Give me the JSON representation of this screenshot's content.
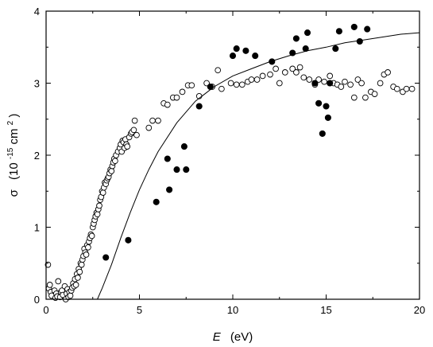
{
  "chart_data": {
    "type": "scatter",
    "title": "",
    "xlabel": {
      "var": "E",
      "unit": "(eV)"
    },
    "ylabel": {
      "var": "σ",
      "unit_open": "(10",
      "unit_exp": "-15",
      "unit_close": " cm",
      "unit_sq": "2",
      "unit_end": ")"
    },
    "xlim": [
      0,
      20
    ],
    "ylim": [
      0,
      4
    ],
    "x_ticks": [
      0,
      5,
      10,
      15,
      20
    ],
    "y_ticks": [
      0,
      1,
      2,
      3,
      4
    ],
    "x_tick_labels": [
      "0",
      "5",
      "10",
      "15",
      "20"
    ],
    "y_tick_labels": [
      "0",
      "1",
      "2",
      "3",
      "4"
    ],
    "grid": false,
    "legend": "none",
    "colors": {
      "axis": "#000000",
      "marker": "#000000",
      "curve": "#000000"
    },
    "series": [
      {
        "style": "open-circle",
        "points": [
          [
            0.1,
            0.48
          ],
          [
            0.15,
            0.15
          ],
          [
            0.2,
            0.2
          ],
          [
            0.25,
            0.1
          ],
          [
            0.3,
            0.05
          ],
          [
            0.45,
            0.12
          ],
          [
            0.5,
            0.02
          ],
          [
            0.55,
            0.08
          ],
          [
            0.6,
            0.04
          ],
          [
            0.65,
            0.25
          ],
          [
            0.75,
            0.03
          ],
          [
            0.8,
            0.1
          ],
          [
            0.85,
            0.12
          ],
          [
            0.9,
            0.06
          ],
          [
            1.0,
            0.18
          ],
          [
            1.05,
            0.0
          ],
          [
            1.1,
            0.08
          ],
          [
            1.15,
            0.14
          ],
          [
            1.2,
            0.03
          ],
          [
            1.25,
            0.1
          ],
          [
            1.3,
            0.05
          ],
          [
            1.35,
            0.12
          ],
          [
            1.4,
            0.16
          ],
          [
            1.45,
            0.22
          ],
          [
            1.5,
            0.18
          ],
          [
            1.55,
            0.28
          ],
          [
            1.6,
            0.2
          ],
          [
            1.65,
            0.35
          ],
          [
            1.7,
            0.3
          ],
          [
            1.75,
            0.42
          ],
          [
            1.8,
            0.38
          ],
          [
            1.85,
            0.5
          ],
          [
            1.9,
            0.48
          ],
          [
            1.95,
            0.55
          ],
          [
            2.0,
            0.6
          ],
          [
            2.05,
            0.7
          ],
          [
            2.1,
            0.65
          ],
          [
            2.15,
            0.62
          ],
          [
            2.2,
            0.75
          ],
          [
            2.25,
            0.72
          ],
          [
            2.3,
            0.8
          ],
          [
            2.35,
            0.85
          ],
          [
            2.4,
            0.9
          ],
          [
            2.45,
            0.88
          ],
          [
            2.5,
            1.0
          ],
          [
            2.55,
            1.05
          ],
          [
            2.6,
            1.1
          ],
          [
            2.65,
            1.15
          ],
          [
            2.7,
            1.2
          ],
          [
            2.75,
            1.18
          ],
          [
            2.8,
            1.25
          ],
          [
            2.85,
            1.3
          ],
          [
            2.9,
            1.38
          ],
          [
            2.95,
            1.42
          ],
          [
            3.0,
            1.5
          ],
          [
            3.05,
            1.48
          ],
          [
            3.1,
            1.55
          ],
          [
            3.15,
            1.62
          ],
          [
            3.2,
            1.6
          ],
          [
            3.25,
            1.65
          ],
          [
            3.3,
            1.68
          ],
          [
            3.35,
            1.7
          ],
          [
            3.4,
            1.75
          ],
          [
            3.45,
            1.8
          ],
          [
            3.5,
            1.78
          ],
          [
            3.55,
            1.85
          ],
          [
            3.6,
            1.9
          ],
          [
            3.65,
            1.95
          ],
          [
            3.7,
            1.92
          ],
          [
            3.75,
            2.0
          ],
          [
            3.85,
            2.05
          ],
          [
            3.95,
            2.1
          ],
          [
            4.0,
            2.15
          ],
          [
            4.05,
            2.05
          ],
          [
            4.1,
            2.2
          ],
          [
            4.15,
            2.18
          ],
          [
            4.2,
            2.1
          ],
          [
            4.25,
            2.22
          ],
          [
            4.3,
            2.15
          ],
          [
            4.35,
            2.12
          ],
          [
            4.45,
            2.25
          ],
          [
            4.55,
            2.3
          ],
          [
            4.6,
            2.32
          ],
          [
            4.7,
            2.35
          ],
          [
            4.75,
            2.48
          ],
          [
            4.85,
            2.28
          ],
          [
            5.5,
            2.38
          ],
          [
            5.7,
            2.48
          ],
          [
            6.0,
            2.48
          ],
          [
            6.3,
            2.72
          ],
          [
            6.5,
            2.7
          ],
          [
            6.8,
            2.8
          ],
          [
            7.0,
            2.8
          ],
          [
            7.3,
            2.88
          ],
          [
            7.6,
            2.97
          ],
          [
            7.8,
            2.97
          ],
          [
            8.2,
            2.82
          ],
          [
            8.6,
            3.0
          ],
          [
            8.9,
            2.95
          ],
          [
            9.2,
            3.18
          ],
          [
            9.4,
            2.92
          ],
          [
            9.9,
            3.0
          ],
          [
            10.2,
            2.98
          ],
          [
            10.5,
            2.98
          ],
          [
            10.8,
            3.02
          ],
          [
            11.0,
            3.05
          ],
          [
            11.3,
            3.05
          ],
          [
            11.6,
            3.1
          ],
          [
            12.0,
            3.12
          ],
          [
            12.3,
            3.2
          ],
          [
            12.5,
            3.0
          ],
          [
            12.8,
            3.15
          ],
          [
            13.2,
            3.2
          ],
          [
            13.4,
            3.15
          ],
          [
            13.6,
            3.22
          ],
          [
            13.8,
            3.08
          ],
          [
            14.1,
            3.05
          ],
          [
            14.4,
            2.98
          ],
          [
            14.6,
            3.05
          ],
          [
            14.9,
            3.02
          ],
          [
            15.2,
            3.1
          ],
          [
            15.4,
            3.0
          ],
          [
            15.6,
            2.98
          ],
          [
            15.8,
            2.95
          ],
          [
            16.0,
            3.02
          ],
          [
            16.3,
            2.98
          ],
          [
            16.5,
            2.8
          ],
          [
            16.7,
            3.05
          ],
          [
            16.9,
            3.0
          ],
          [
            17.1,
            2.8
          ],
          [
            17.4,
            2.88
          ],
          [
            17.6,
            2.85
          ],
          [
            17.9,
            3.0
          ],
          [
            18.1,
            3.12
          ],
          [
            18.3,
            3.15
          ],
          [
            18.6,
            2.95
          ],
          [
            18.8,
            2.92
          ],
          [
            19.1,
            2.88
          ],
          [
            19.3,
            2.92
          ],
          [
            19.6,
            2.92
          ]
        ]
      },
      {
        "style": "filled-circle",
        "points": [
          [
            3.2,
            0.58
          ],
          [
            4.4,
            0.82
          ],
          [
            5.9,
            1.35
          ],
          [
            6.5,
            1.95
          ],
          [
            6.6,
            1.52
          ],
          [
            7.0,
            1.8
          ],
          [
            7.4,
            2.12
          ],
          [
            7.5,
            1.8
          ],
          [
            8.2,
            2.68
          ],
          [
            8.8,
            2.95
          ],
          [
            10.0,
            3.38
          ],
          [
            10.2,
            3.48
          ],
          [
            10.7,
            3.45
          ],
          [
            11.2,
            3.38
          ],
          [
            12.1,
            3.3
          ],
          [
            13.2,
            3.42
          ],
          [
            13.4,
            3.62
          ],
          [
            13.9,
            3.48
          ],
          [
            14.0,
            3.7
          ],
          [
            14.4,
            3.0
          ],
          [
            14.6,
            2.72
          ],
          [
            14.8,
            2.3
          ],
          [
            15.0,
            2.68
          ],
          [
            15.1,
            2.52
          ],
          [
            15.2,
            3.0
          ],
          [
            15.5,
            3.48
          ],
          [
            15.7,
            3.72
          ],
          [
            16.5,
            3.78
          ],
          [
            16.8,
            3.58
          ],
          [
            17.2,
            3.75
          ]
        ]
      },
      {
        "style": "line",
        "points": [
          [
            2.75,
            0.0
          ],
          [
            3.0,
            0.15
          ],
          [
            3.5,
            0.48
          ],
          [
            4.0,
            0.85
          ],
          [
            4.5,
            1.2
          ],
          [
            5.0,
            1.52
          ],
          [
            5.5,
            1.8
          ],
          [
            6.0,
            2.05
          ],
          [
            7.0,
            2.45
          ],
          [
            8.0,
            2.75
          ],
          [
            9.0,
            2.95
          ],
          [
            10.0,
            3.1
          ],
          [
            11.0,
            3.2
          ],
          [
            12.0,
            3.3
          ],
          [
            13.0,
            3.38
          ],
          [
            14.0,
            3.45
          ],
          [
            15.0,
            3.5
          ],
          [
            16.0,
            3.56
          ],
          [
            17.0,
            3.6
          ],
          [
            18.0,
            3.64
          ],
          [
            19.0,
            3.68
          ],
          [
            20.0,
            3.7
          ]
        ]
      }
    ]
  }
}
